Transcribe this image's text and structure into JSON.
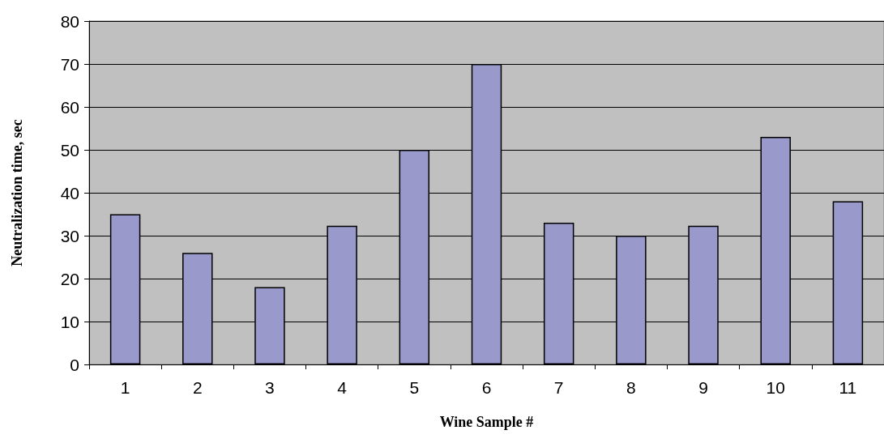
{
  "chart_data": {
    "type": "bar",
    "xlabel": "Wine Sample #",
    "ylabel": "Neutralization time, sec",
    "categories": [
      "1",
      "2",
      "3",
      "4",
      "5",
      "6",
      "7",
      "8",
      "9",
      "10",
      "11"
    ],
    "values": [
      35,
      26,
      18,
      32.3,
      50,
      70,
      33,
      30,
      32.3,
      53,
      38
    ],
    "color": "#9999cc",
    "ylim": [
      0,
      80
    ],
    "yticks": [
      0,
      10,
      20,
      30,
      40,
      50,
      60,
      70,
      80
    ],
    "grid": "y"
  }
}
